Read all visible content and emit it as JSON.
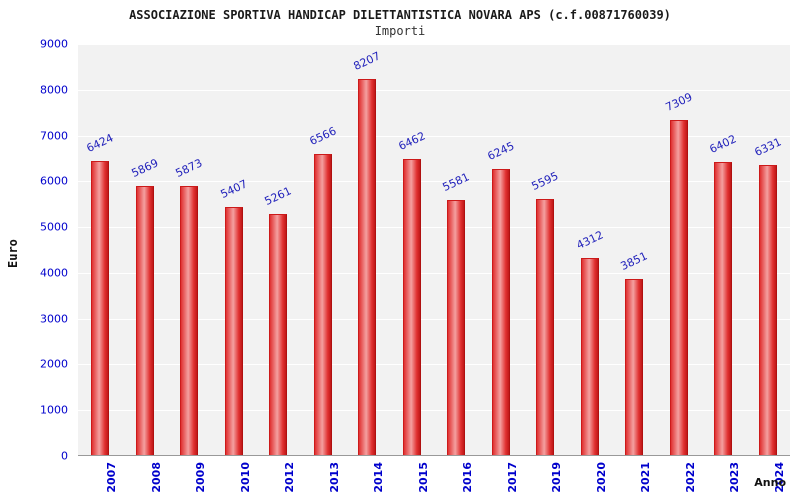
{
  "header": {
    "title": "ASSOCIAZIONE SPORTIVA HANDICAP DILETTANTISTICA NOVARA APS (c.f.00871760039)",
    "subtitle": "Importi"
  },
  "chart_data": {
    "type": "bar",
    "title": "ASSOCIAZIONE SPORTIVA HANDICAP DILETTANTISTICA NOVARA APS (c.f.00871760039)",
    "subtitle": "Importi",
    "xlabel": "Anno",
    "ylabel": "Euro",
    "ylim": [
      0,
      9000
    ],
    "ytick_step": 1000,
    "grid": true,
    "legend": "none",
    "categories": [
      "2007",
      "2008",
      "2009",
      "2010",
      "2012",
      "2013",
      "2014",
      "2015",
      "2016",
      "2017",
      "2019",
      "2020",
      "2021",
      "2022",
      "2023",
      "2024"
    ],
    "values": [
      6424,
      5869,
      5873,
      5407,
      5261,
      6566,
      8207,
      6462,
      5581,
      6245,
      5595,
      4312,
      3851,
      7309,
      6402,
      6331
    ],
    "colors": {
      "bar_main": "#e03030",
      "bar_highlight": "#f4a0a0",
      "bar_edge": "#c01818",
      "tick_label": "#0000cc",
      "value_label": "#2222bb",
      "plot_bg": "#f2f2f2",
      "gridline": "#ffffff"
    }
  }
}
